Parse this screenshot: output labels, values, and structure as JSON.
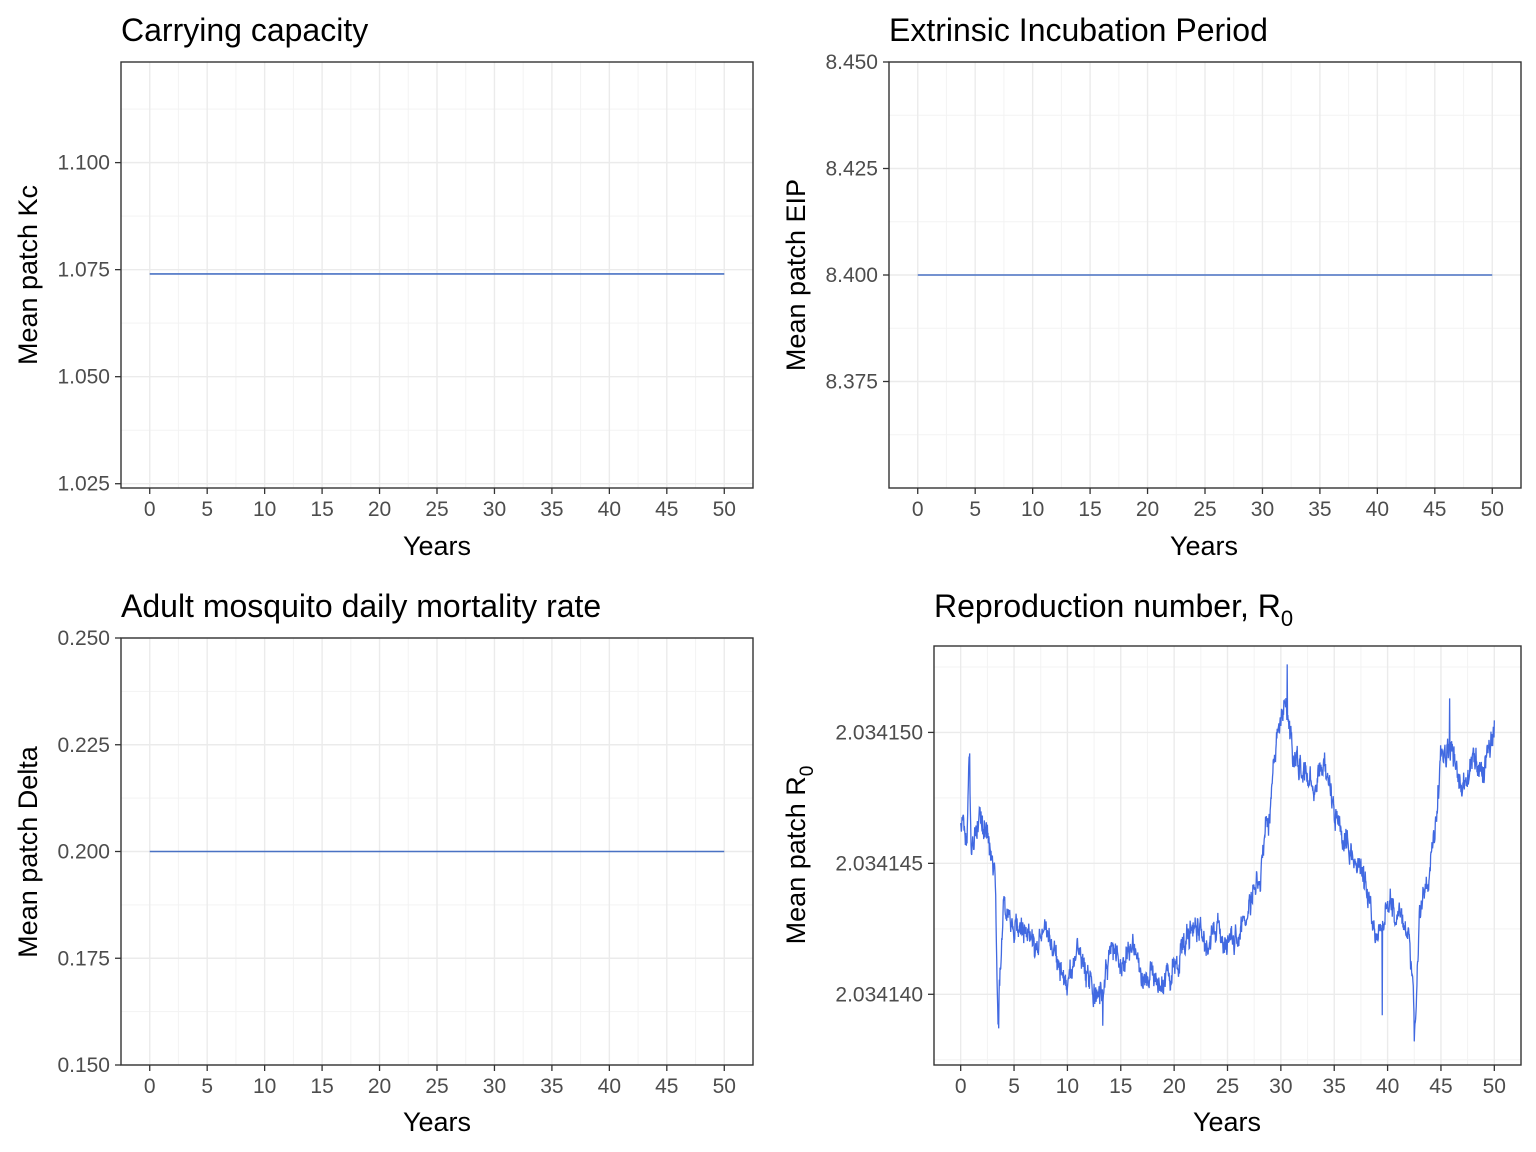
{
  "chart_data": [
    {
      "id": "kc",
      "type": "line",
      "title": "Carrying capacity",
      "xlabel": "Years",
      "ylabel": "Mean patch Kc",
      "xlim": [
        -2.5,
        52.5
      ],
      "ylim": [
        1.024,
        1.1235
      ],
      "xticks": [
        0,
        5,
        10,
        15,
        20,
        25,
        30,
        35,
        40,
        45,
        50
      ],
      "xtick_labels": [
        "0",
        "5",
        "10",
        "15",
        "20",
        "25",
        "30",
        "35",
        "40",
        "45",
        "50"
      ],
      "yticks": [
        1.025,
        1.05,
        1.075,
        1.1
      ],
      "ytick_labels": [
        "1.025",
        "1.050",
        "1.075",
        "1.100"
      ],
      "grid": true,
      "line_color": "#4a72c4",
      "series": [
        {
          "x": [
            0,
            50
          ],
          "y": [
            1.074,
            1.074
          ]
        }
      ]
    },
    {
      "id": "eip",
      "type": "line",
      "title": "Extrinsic Incubation Period",
      "xlabel": "Years",
      "ylabel": "Mean patch EIP",
      "xlim": [
        -2.5,
        52.5
      ],
      "ylim": [
        8.35,
        8.45
      ],
      "xticks": [
        0,
        5,
        10,
        15,
        20,
        25,
        30,
        35,
        40,
        45,
        50
      ],
      "xtick_labels": [
        "0",
        "5",
        "10",
        "15",
        "20",
        "25",
        "30",
        "35",
        "40",
        "45",
        "50"
      ],
      "yticks": [
        8.375,
        8.4,
        8.425,
        8.45
      ],
      "ytick_labels": [
        "8.375",
        "8.400",
        "8.425",
        "8.450"
      ],
      "grid": true,
      "line_color": "#4a72c4",
      "series": [
        {
          "x": [
            0,
            50
          ],
          "y": [
            8.4,
            8.4
          ]
        }
      ]
    },
    {
      "id": "delta",
      "type": "line",
      "title": "Adult mosquito daily mortality rate",
      "xlabel": "Years",
      "ylabel": "Mean patch Delta",
      "xlim": [
        -2.5,
        52.5
      ],
      "ylim": [
        0.15,
        0.25
      ],
      "xticks": [
        0,
        5,
        10,
        15,
        20,
        25,
        30,
        35,
        40,
        45,
        50
      ],
      "xtick_labels": [
        "0",
        "5",
        "10",
        "15",
        "20",
        "25",
        "30",
        "35",
        "40",
        "45",
        "50"
      ],
      "yticks": [
        0.15,
        0.175,
        0.2,
        0.225,
        0.25
      ],
      "ytick_labels": [
        "0.150",
        "0.175",
        "0.200",
        "0.225",
        "0.250"
      ],
      "grid": true,
      "line_color": "#4a72c4",
      "series": [
        {
          "x": [
            0,
            50
          ],
          "y": [
            0.2,
            0.2
          ]
        }
      ]
    },
    {
      "id": "r0",
      "type": "line",
      "title": "Reproduction number, R",
      "title_subscript": "0",
      "xlabel": "Years",
      "ylabel": "Mean patch R",
      "ylabel_subscript": "0",
      "xlim": [
        -2.5,
        52.5
      ],
      "ylim": [
        2.0341373,
        2.0341533
      ],
      "xticks": [
        0,
        5,
        10,
        15,
        20,
        25,
        30,
        35,
        40,
        45,
        50
      ],
      "xtick_labels": [
        "0",
        "5",
        "10",
        "15",
        "20",
        "25",
        "30",
        "35",
        "40",
        "45",
        "50"
      ],
      "yticks": [
        2.03414,
        2.034145,
        2.03415
      ],
      "ytick_labels": [
        "2.034140",
        "2.034145",
        "2.034150"
      ],
      "grid": true,
      "line_color": "#4169e1",
      "noise": 6e-07,
      "anchors": [
        [
          0,
          2.0341465
        ],
        [
          0.6,
          2.0341462
        ],
        [
          0.8,
          2.034149
        ],
        [
          1.0,
          2.0341455
        ],
        [
          1.8,
          2.034147
        ],
        [
          2.5,
          2.0341458
        ],
        [
          3.2,
          2.0341448
        ],
        [
          3.5,
          2.034139
        ],
        [
          4.0,
          2.0341435
        ],
        [
          5,
          2.0341425
        ],
        [
          6,
          2.0341428
        ],
        [
          7,
          2.0341418
        ],
        [
          8,
          2.0341425
        ],
        [
          9,
          2.0341412
        ],
        [
          10,
          2.0341405
        ],
        [
          11,
          2.0341418
        ],
        [
          12,
          2.0341408
        ],
        [
          13,
          2.0341398
        ],
        [
          14,
          2.0341418
        ],
        [
          15,
          2.034141
        ],
        [
          16,
          2.034142
        ],
        [
          17,
          2.0341405
        ],
        [
          18,
          2.034141
        ],
        [
          19,
          2.03414
        ],
        [
          20,
          2.0341412
        ],
        [
          21,
          2.034142
        ],
        [
          22,
          2.0341428
        ],
        [
          23,
          2.034142
        ],
        [
          24,
          2.0341425
        ],
        [
          25,
          2.0341418
        ],
        [
          26,
          2.034142
        ],
        [
          27,
          2.0341435
        ],
        [
          28,
          2.0341445
        ],
        [
          29,
          2.034147
        ],
        [
          29.8,
          2.0341505
        ],
        [
          30.6,
          2.034151
        ],
        [
          31.2,
          2.034149
        ],
        [
          32,
          2.0341485
        ],
        [
          33,
          2.034148
        ],
        [
          34,
          2.034149
        ],
        [
          35,
          2.034147
        ],
        [
          36,
          2.034146
        ],
        [
          37,
          2.034145
        ],
        [
          38,
          2.034144
        ],
        [
          39,
          2.034142
        ],
        [
          40,
          2.0341435
        ],
        [
          41,
          2.034143
        ],
        [
          42,
          2.0341425
        ],
        [
          42.6,
          2.0341385
        ],
        [
          43,
          2.034143
        ],
        [
          44,
          2.0341448
        ],
        [
          45,
          2.034149
        ],
        [
          46,
          2.0341495
        ],
        [
          47,
          2.034148
        ],
        [
          48,
          2.034149
        ],
        [
          49,
          2.0341485
        ],
        [
          50,
          2.03415
        ]
      ],
      "extremes": [
        [
          0.85,
          2.0341492
        ],
        [
          3.55,
          2.0341387
        ],
        [
          13.3,
          2.0341388
        ],
        [
          30.6,
          2.0341526
        ],
        [
          39.5,
          2.0341392
        ],
        [
          42.5,
          2.0341382
        ],
        [
          45.8,
          2.0341513
        ]
      ]
    }
  ]
}
